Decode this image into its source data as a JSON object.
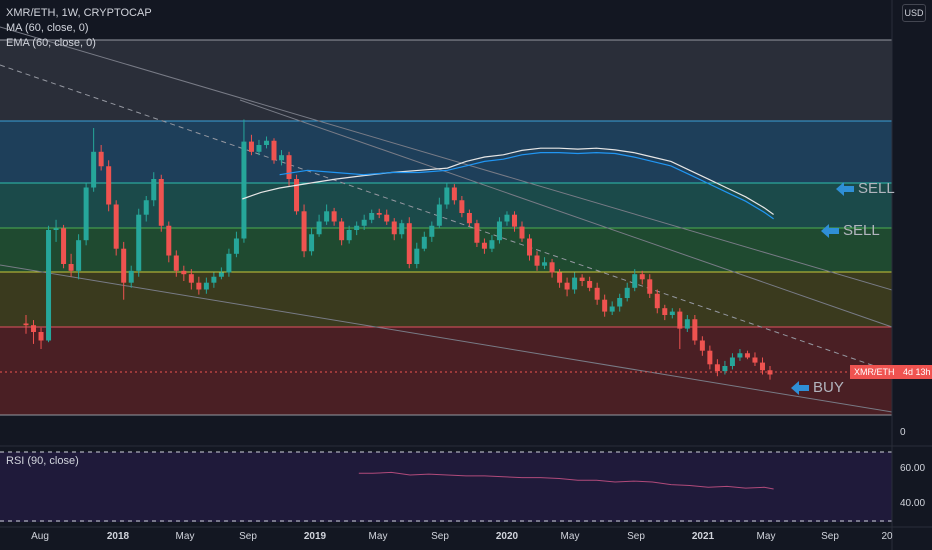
{
  "legend": {
    "title": "XMR/ETH, 1W, CRYPTOCAP",
    "ma": "MA (60, close, 0)",
    "ema": "EMA (60, close, 0)"
  },
  "currency_button": "USD",
  "rsi": {
    "label": "RSI (90, close)",
    "ticks": [
      "60.00",
      "40.00"
    ],
    "line_color": "#b04a7a"
  },
  "price_axis": {
    "zero_label": "0"
  },
  "price_tag": {
    "symbol": "XMR/ETH",
    "countdown": "4d 13h"
  },
  "signals": [
    {
      "label": "SELL",
      "color": "#2f8fd6"
    },
    {
      "label": "SELL",
      "color": "#2f8fd6"
    },
    {
      "label": "BUY",
      "color": "#2f8fd6"
    }
  ],
  "colors": {
    "background": "#131722",
    "candle_up": "#26a69a",
    "candle_down": "#ef5350",
    "ma_line": "#e6e6e6",
    "ema_line": "#2196f3"
  },
  "chart_data": {
    "type": "candlestick",
    "x_ticks": [
      "Aug",
      "2018",
      "May",
      "Sep",
      "2019",
      "May",
      "Sep",
      "2020",
      "May",
      "Sep",
      "2021",
      "May",
      "Sep",
      "20"
    ],
    "bands": [
      {
        "name": "zone-1",
        "color": "#2a2e39"
      },
      {
        "name": "zone-2",
        "color": "#1e3f5a"
      },
      {
        "name": "zone-3",
        "color": "#1b4a4a"
      },
      {
        "name": "zone-4",
        "color": "#1f4a30"
      },
      {
        "name": "zone-5",
        "color": "#3a3a1e"
      },
      {
        "name": "zone-6",
        "color": "#4a1f24"
      }
    ],
    "candles": [
      [
        310,
        312,
        300,
        322
      ],
      [
        312,
        320,
        306,
        334
      ],
      [
        320,
        330,
        315,
        340
      ],
      [
        330,
        200,
        195,
        332
      ],
      [
        200,
        198,
        188,
        214
      ],
      [
        198,
        240,
        194,
        245
      ],
      [
        240,
        248,
        228,
        255
      ],
      [
        248,
        212,
        205,
        258
      ],
      [
        212,
        150,
        145,
        218
      ],
      [
        150,
        108,
        80,
        155
      ],
      [
        108,
        125,
        100,
        130
      ],
      [
        125,
        170,
        118,
        178
      ],
      [
        170,
        222,
        165,
        230
      ],
      [
        222,
        262,
        214,
        282
      ],
      [
        262,
        248,
        242,
        268
      ],
      [
        248,
        182,
        175,
        255
      ],
      [
        182,
        165,
        160,
        190
      ],
      [
        165,
        140,
        132,
        172
      ],
      [
        140,
        195,
        135,
        202
      ],
      [
        195,
        230,
        190,
        238
      ],
      [
        230,
        248,
        224,
        255
      ],
      [
        248,
        252,
        242,
        260
      ],
      [
        252,
        262,
        246,
        270
      ],
      [
        262,
        270,
        255,
        276
      ],
      [
        270,
        262,
        256,
        275
      ],
      [
        262,
        255,
        250,
        268
      ],
      [
        255,
        250,
        244,
        258
      ],
      [
        250,
        228,
        222,
        255
      ],
      [
        228,
        210,
        202,
        232
      ],
      [
        210,
        96,
        70,
        215
      ],
      [
        96,
        108,
        88,
        112
      ],
      [
        108,
        100,
        94,
        112
      ],
      [
        100,
        95,
        90,
        104
      ],
      [
        95,
        118,
        92,
        122
      ],
      [
        118,
        112,
        106,
        124
      ],
      [
        112,
        140,
        108,
        148
      ],
      [
        140,
        178,
        135,
        182
      ],
      [
        178,
        225,
        170,
        232
      ],
      [
        225,
        205,
        198,
        230
      ],
      [
        205,
        190,
        182,
        208
      ],
      [
        190,
        178,
        170,
        194
      ],
      [
        178,
        190,
        174,
        195
      ],
      [
        190,
        212,
        186,
        218
      ],
      [
        212,
        200,
        195,
        216
      ],
      [
        200,
        195,
        190,
        206
      ],
      [
        195,
        188,
        182,
        200
      ],
      [
        188,
        180,
        176,
        192
      ],
      [
        180,
        182,
        175,
        186
      ],
      [
        182,
        190,
        176,
        194
      ],
      [
        190,
        205,
        186,
        212
      ],
      [
        205,
        192,
        188,
        210
      ],
      [
        192,
        240,
        185,
        245
      ],
      [
        240,
        222,
        215,
        245
      ],
      [
        222,
        208,
        202,
        225
      ],
      [
        208,
        195,
        190,
        214
      ],
      [
        195,
        170,
        162,
        198
      ],
      [
        170,
        150,
        145,
        175
      ],
      [
        150,
        165,
        146,
        170
      ],
      [
        165,
        180,
        160,
        185
      ],
      [
        180,
        192,
        176,
        196
      ],
      [
        192,
        215,
        188,
        220
      ],
      [
        215,
        222,
        210,
        228
      ],
      [
        222,
        212,
        206,
        226
      ],
      [
        212,
        190,
        185,
        216
      ],
      [
        190,
        182,
        178,
        195
      ],
      [
        182,
        196,
        178,
        202
      ],
      [
        196,
        210,
        190,
        214
      ],
      [
        210,
        230,
        205,
        236
      ],
      [
        230,
        242,
        225,
        248
      ],
      [
        242,
        238,
        232,
        246
      ],
      [
        238,
        250,
        234,
        256
      ],
      [
        250,
        262,
        246,
        268
      ],
      [
        262,
        270,
        256,
        278
      ],
      [
        270,
        256,
        250,
        275
      ],
      [
        256,
        260,
        252,
        266
      ],
      [
        260,
        268,
        255,
        272
      ],
      [
        268,
        282,
        262,
        288
      ],
      [
        282,
        296,
        276,
        302
      ],
      [
        296,
        290,
        284,
        300
      ],
      [
        290,
        280,
        275,
        296
      ],
      [
        280,
        268,
        262,
        284
      ],
      [
        268,
        252,
        246,
        272
      ],
      [
        252,
        258,
        248,
        264
      ],
      [
        258,
        275,
        252,
        280
      ],
      [
        275,
        292,
        270,
        298
      ],
      [
        292,
        300,
        288,
        306
      ],
      [
        300,
        296,
        292,
        304
      ],
      [
        296,
        316,
        292,
        340
      ],
      [
        316,
        305,
        300,
        320
      ],
      [
        305,
        330,
        300,
        335
      ],
      [
        330,
        342,
        325,
        348
      ],
      [
        342,
        358,
        336,
        364
      ],
      [
        358,
        366,
        352,
        372
      ],
      [
        366,
        360,
        354,
        370
      ],
      [
        360,
        350,
        345,
        364
      ],
      [
        350,
        345,
        340,
        354
      ],
      [
        345,
        350,
        342,
        352
      ],
      [
        350,
        356,
        344,
        360
      ],
      [
        356,
        365,
        350,
        370
      ],
      [
        365,
        370,
        360,
        376
      ]
    ],
    "ma": [
      [
        0.26,
        0.405
      ],
      [
        0.28,
        0.39
      ],
      [
        0.3,
        0.38
      ],
      [
        0.33,
        0.37
      ],
      [
        0.36,
        0.36
      ],
      [
        0.39,
        0.352
      ],
      [
        0.42,
        0.345
      ],
      [
        0.45,
        0.34
      ],
      [
        0.48,
        0.335
      ],
      [
        0.5,
        0.32
      ],
      [
        0.52,
        0.31
      ],
      [
        0.54,
        0.305
      ],
      [
        0.56,
        0.295
      ],
      [
        0.58,
        0.29
      ],
      [
        0.6,
        0.29
      ],
      [
        0.62,
        0.292
      ],
      [
        0.64,
        0.29
      ],
      [
        0.66,
        0.294
      ],
      [
        0.68,
        0.3
      ],
      [
        0.7,
        0.31
      ],
      [
        0.72,
        0.32
      ],
      [
        0.74,
        0.34
      ],
      [
        0.76,
        0.36
      ],
      [
        0.78,
        0.38
      ],
      [
        0.8,
        0.4
      ],
      [
        0.82,
        0.425
      ],
      [
        0.83,
        0.44
      ]
    ],
    "ema": [
      [
        0.3,
        0.35
      ],
      [
        0.33,
        0.34
      ],
      [
        0.36,
        0.345
      ],
      [
        0.39,
        0.35
      ],
      [
        0.42,
        0.345
      ],
      [
        0.45,
        0.345
      ],
      [
        0.48,
        0.34
      ],
      [
        0.5,
        0.33
      ],
      [
        0.52,
        0.32
      ],
      [
        0.54,
        0.315
      ],
      [
        0.56,
        0.305
      ],
      [
        0.58,
        0.3
      ],
      [
        0.6,
        0.3
      ],
      [
        0.62,
        0.302
      ],
      [
        0.64,
        0.3
      ],
      [
        0.66,
        0.302
      ],
      [
        0.68,
        0.31
      ],
      [
        0.7,
        0.32
      ],
      [
        0.72,
        0.33
      ],
      [
        0.74,
        0.35
      ],
      [
        0.76,
        0.37
      ],
      [
        0.78,
        0.39
      ],
      [
        0.8,
        0.41
      ],
      [
        0.82,
        0.435
      ],
      [
        0.83,
        0.45
      ]
    ],
    "rsi": [
      [
        0.385,
        57
      ],
      [
        0.4,
        57
      ],
      [
        0.42,
        57.5
      ],
      [
        0.44,
        56
      ],
      [
        0.46,
        56.5
      ],
      [
        0.48,
        56
      ],
      [
        0.5,
        55.5
      ],
      [
        0.52,
        55.5
      ],
      [
        0.54,
        55
      ],
      [
        0.56,
        54.5
      ],
      [
        0.58,
        54.5
      ],
      [
        0.6,
        54
      ],
      [
        0.62,
        53
      ],
      [
        0.64,
        53
      ],
      [
        0.66,
        52
      ],
      [
        0.68,
        52.5
      ],
      [
        0.7,
        52
      ],
      [
        0.72,
        50.5
      ],
      [
        0.74,
        50
      ],
      [
        0.76,
        49
      ],
      [
        0.78,
        49.5
      ],
      [
        0.8,
        48.5
      ],
      [
        0.82,
        49
      ],
      [
        0.83,
        48
      ]
    ]
  }
}
